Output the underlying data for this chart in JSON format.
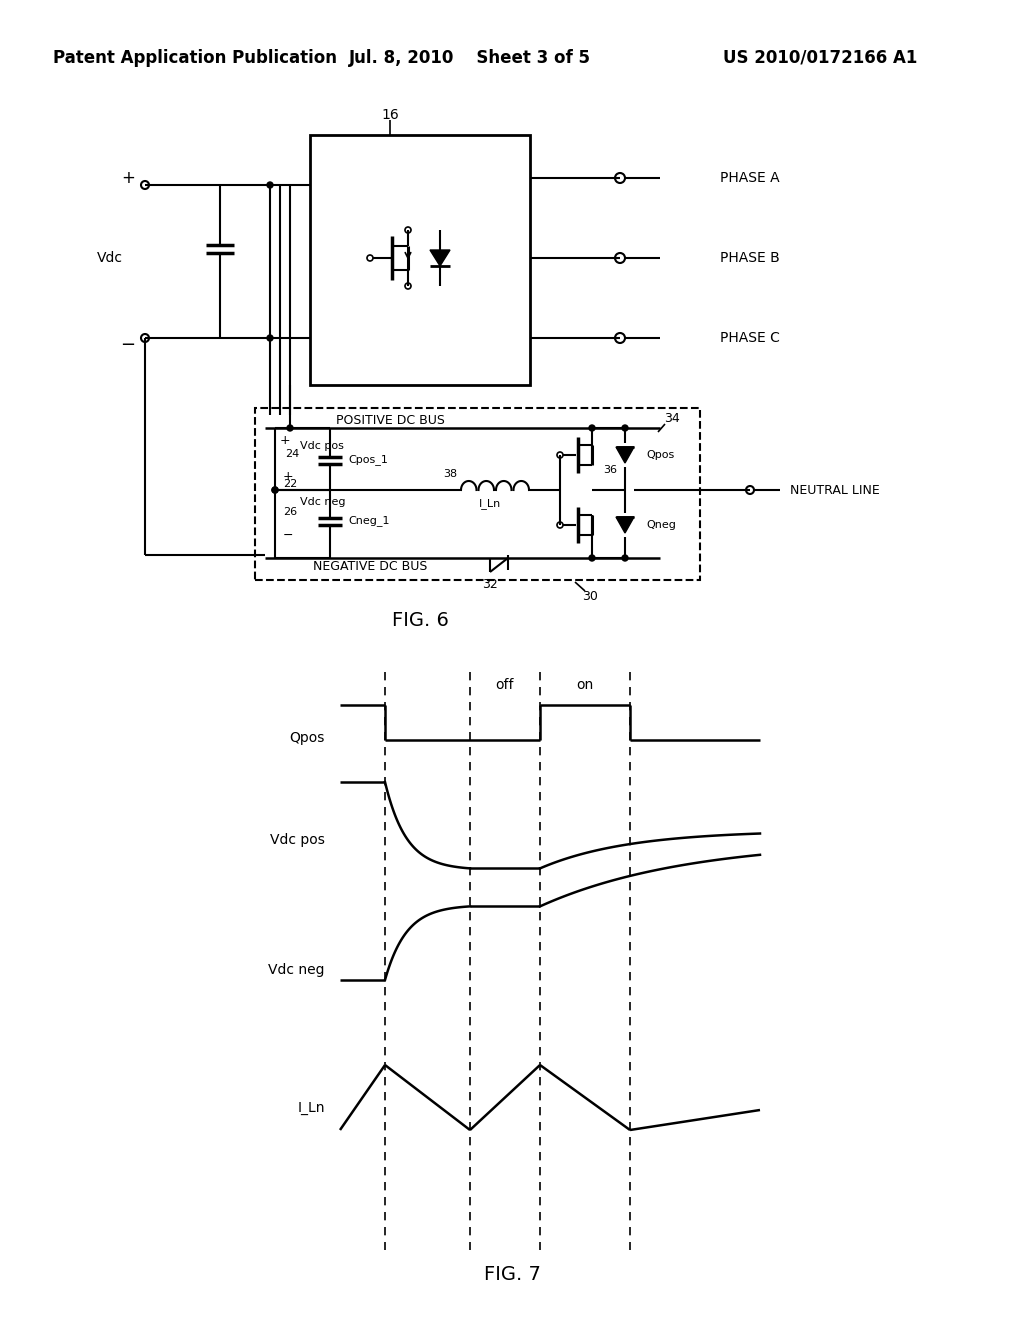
{
  "header_left": "Patent Application Publication",
  "header_mid": "Jul. 8, 2010   Sheet 3 of 5",
  "header_right": "US 2010/0172166 A1",
  "fig6_label": "FIG. 6",
  "fig7_label": "FIG. 7",
  "background_color": "#ffffff",
  "line_color": "#000000",
  "off_label": "off",
  "on_label": "on",
  "waveform_labels": [
    "Qpos",
    "Vdc pos",
    "Vdc neg",
    "I_Ln"
  ]
}
